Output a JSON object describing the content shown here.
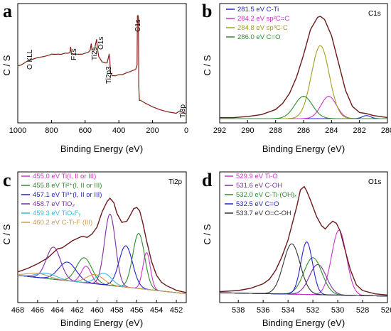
{
  "panels": [
    {
      "letter": "a",
      "xlabel": "Binding Energy (eV)",
      "ylabel": "C / S",
      "annotations": [
        "O KLL",
        "F1s",
        "Ti2s",
        "O1s",
        "Ti2p3",
        "C1s",
        "Ti3p"
      ]
    },
    {
      "letter": "b",
      "xlabel": "Binding Energy (eV)",
      "ylabel": "C / S",
      "corner_label": "C1s",
      "legend": [
        {
          "text": "281.5 eV C-Ti",
          "color": "#2222cc"
        },
        {
          "text": "284.2 eV sp²C=C",
          "color": "#cc33cc"
        },
        {
          "text": "284.8 eV sp³C-C",
          "color": "#a0a020"
        },
        {
          "text": "286.0 eV C=O",
          "color": "#2e8b2e"
        }
      ]
    },
    {
      "letter": "c",
      "xlabel": "Binding Energy (eV)",
      "ylabel": "C / S",
      "corner_label": "Ti2p",
      "legend": [
        {
          "text": "455.0 eV Ti(I, II or III)",
          "color": "#cc33cc"
        },
        {
          "text": "455.8 eV Ti²⁺(I, II or III)",
          "color": "#2e8b2e"
        },
        {
          "text": "457.1 eV Ti³⁺(I, II or III)",
          "color": "#2222cc"
        },
        {
          "text": "458.7 eV TiO₂",
          "color": "#7a2ea0"
        },
        {
          "text": "459.3 eV TiOₓFᵧ",
          "color": "#33bbdd"
        },
        {
          "text": "460.2 eV C-Ti-F (III)",
          "color": "#d09a50"
        }
      ]
    },
    {
      "letter": "d",
      "xlabel": "Binding Energy (eV)",
      "ylabel": "C / S",
      "corner_label": "O1s",
      "legend": [
        {
          "text": "529.9 eV Ti-O",
          "color": "#cc33cc"
        },
        {
          "text": "531.6 eV C-OH",
          "color": "#7a2ea0"
        },
        {
          "text": "532.0 eV C-Ti-(OH)ₓ",
          "color": "#2e8b2e"
        },
        {
          "text": "532.5 eV C=O",
          "color": "#2222cc"
        },
        {
          "text": "533.7 eV O=C-OH",
          "color": "#333333"
        }
      ]
    }
  ],
  "chart_data": [
    {
      "type": "line",
      "panel": "a",
      "xlabel": "Binding Energy (eV)",
      "ylabel": "C / S",
      "xlim": [
        1000,
        0
      ],
      "xticks": [
        "1000",
        "800",
        "600",
        "400",
        "200",
        "0"
      ],
      "series": [
        {
          "color": "#8b1a1a",
          "x": [
            1000,
            980,
            960,
            940,
            920,
            900,
            880,
            860,
            840,
            820,
            800,
            780,
            760,
            740,
            720,
            700,
            690,
            686,
            682,
            670,
            650,
            620,
            600,
            580,
            570,
            564,
            560,
            545,
            540,
            532,
            528,
            520,
            500,
            480,
            470,
            462,
            458,
            454,
            450,
            440,
            420,
            400,
            380,
            350,
            330,
            300,
            292,
            290,
            286,
            284,
            282,
            278,
            270,
            250,
            200,
            150,
            100,
            60,
            40,
            20,
            0
          ],
          "y": [
            0.49,
            0.5,
            0.52,
            0.54,
            0.55,
            0.56,
            0.57,
            0.575,
            0.58,
            0.59,
            0.6,
            0.6,
            0.6,
            0.6,
            0.61,
            0.61,
            0.62,
            0.67,
            0.61,
            0.6,
            0.6,
            0.6,
            0.61,
            0.62,
            0.64,
            0.7,
            0.64,
            0.64,
            0.68,
            0.74,
            0.66,
            0.58,
            0.53,
            0.52,
            0.52,
            0.57,
            0.6,
            0.56,
            0.43,
            0.4,
            0.4,
            0.41,
            0.41,
            0.43,
            0.44,
            0.46,
            0.5,
            0.96,
            0.96,
            0.94,
            0.3,
            0.17,
            0.17,
            0.15,
            0.11,
            0.08,
            0.06,
            0.05,
            0.07,
            0.06,
            0.04
          ]
        }
      ]
    },
    {
      "type": "line",
      "panel": "b",
      "xlabel": "Binding Energy (eV)",
      "ylabel": "C / S",
      "xlim": [
        292,
        280
      ],
      "xticks": [
        "292",
        "290",
        "288",
        "286",
        "284",
        "282",
        "280"
      ],
      "peaks": [
        {
          "label": "281.5 eV C-Ti",
          "center": 281.5,
          "height": 0.03,
          "fwhm": 0.7,
          "color": "#2222cc"
        },
        {
          "label": "284.2 eV sp²C=C",
          "center": 284.2,
          "height": 0.22,
          "fwhm": 1.3,
          "color": "#cc33cc"
        },
        {
          "label": "284.8 eV sp³C-C",
          "center": 284.8,
          "height": 0.72,
          "fwhm": 1.5,
          "color": "#a0a020"
        },
        {
          "label": "286.0 eV C=O",
          "center": 286.0,
          "height": 0.22,
          "fwhm": 1.5,
          "color": "#2e8b2e"
        }
      ],
      "baseline": {
        "y_at_xmin": 0.0,
        "y_at_xmax": 0.0
      },
      "envelope": {
        "x": [
          292,
          291,
          290,
          289,
          288,
          287.5,
          287,
          286.5,
          286,
          285.5,
          285,
          284.8,
          284.5,
          284,
          283.5,
          283,
          282.5,
          282,
          281.5,
          281,
          280.5,
          280
        ],
        "y": [
          0.01,
          0.01,
          0.02,
          0.04,
          0.09,
          0.15,
          0.25,
          0.41,
          0.63,
          0.88,
          1.0,
          1.01,
          0.98,
          0.82,
          0.55,
          0.28,
          0.12,
          0.06,
          0.05,
          0.03,
          0.02,
          0.01
        ]
      }
    },
    {
      "type": "line",
      "panel": "c",
      "xlabel": "Binding Energy (eV)",
      "ylabel": "C / S",
      "xlim": [
        468,
        451
      ],
      "xticks": [
        "468",
        "466",
        "464",
        "462",
        "460",
        "458",
        "456",
        "454",
        "452"
      ],
      "peaks": [
        {
          "label": "455.0 eV Ti(I, II or III)",
          "center": 455.0,
          "height": 0.32,
          "fwhm": 0.9,
          "color": "#cc33cc",
          "doublet_offset": 6.1,
          "doublet_ratio": 0.45
        },
        {
          "label": "455.8 eV Ti²⁺(I, II or III)",
          "center": 455.8,
          "height": 0.48,
          "fwhm": 1.4,
          "color": "#2e8b2e",
          "doublet_offset": 5.5,
          "doublet_ratio": 0.45
        },
        {
          "label": "457.1 eV Ti³⁺(I, II or III)",
          "center": 457.1,
          "height": 0.36,
          "fwhm": 1.6,
          "color": "#2222cc",
          "doublet_offset": 5.9,
          "doublet_ratio": 0.45
        },
        {
          "label": "458.7 eV TiO₂",
          "center": 458.7,
          "height": 0.62,
          "fwhm": 1.3,
          "color": "#7a2ea0",
          "doublet_offset": 5.7,
          "doublet_ratio": 0.45
        },
        {
          "label": "459.3 eV TiOₓFᵧ",
          "center": 459.3,
          "height": 0.1,
          "fwhm": 1.8,
          "color": "#33bbdd",
          "doublet_offset": 5.8,
          "doublet_ratio": 0.45
        },
        {
          "label": "460.2 eV C-Ti-F (III)",
          "center": 460.2,
          "height": 0.08,
          "fwhm": 2.0,
          "color": "#d09a50",
          "doublet_offset": 5.8,
          "doublet_ratio": 0.45
        }
      ],
      "baseline": {
        "y_at_xmin": 0.2,
        "y_at_xmax": 0.04
      },
      "envelope": {
        "x": [
          468,
          467,
          466,
          465,
          464.5,
          464,
          463.5,
          463,
          462.5,
          462,
          461.5,
          461,
          460.5,
          460,
          459.5,
          459,
          458.7,
          458.3,
          458,
          457.5,
          457,
          456.6,
          456.3,
          456,
          455.7,
          455.4,
          455,
          454.5,
          454,
          453.5,
          453,
          452.5,
          452,
          451.5,
          451
        ],
        "y": [
          0.23,
          0.26,
          0.3,
          0.35,
          0.39,
          0.43,
          0.44,
          0.47,
          0.5,
          0.52,
          0.54,
          0.53,
          0.56,
          0.62,
          0.75,
          0.84,
          0.87,
          0.83,
          0.74,
          0.66,
          0.67,
          0.73,
          0.78,
          0.79,
          0.76,
          0.66,
          0.5,
          0.32,
          0.2,
          0.14,
          0.11,
          0.09,
          0.07,
          0.06,
          0.05
        ]
      }
    },
    {
      "type": "line",
      "panel": "d",
      "xlabel": "Binding Energy (eV)",
      "ylabel": "C / S",
      "xlim": [
        539.5,
        526
      ],
      "xticks": [
        "538",
        "536",
        "534",
        "532",
        "530",
        "528",
        "526"
      ],
      "peaks": [
        {
          "label": "529.9 eV Ti-O",
          "center": 529.9,
          "height": 0.58,
          "fwhm": 1.4,
          "color": "#cc33cc"
        },
        {
          "label": "531.6 eV C-OH",
          "center": 531.6,
          "height": 0.27,
          "fwhm": 1.6,
          "color": "#7a2ea0"
        },
        {
          "label": "532.0 eV C-Ti-(OH)ₓ",
          "center": 532.0,
          "height": 0.33,
          "fwhm": 1.7,
          "color": "#2e8b2e"
        },
        {
          "label": "532.5 eV C=O",
          "center": 532.5,
          "height": 0.47,
          "fwhm": 1.1,
          "color": "#2222cc"
        },
        {
          "label": "533.7 eV O=C-OH",
          "center": 533.7,
          "height": 0.45,
          "fwhm": 1.6,
          "color": "#333333"
        }
      ],
      "baseline": {
        "y_at_xmin": 0.05,
        "y_at_xmax": 0.02
      },
      "envelope": {
        "x": [
          539.5,
          538,
          537,
          536,
          535.5,
          535,
          534.5,
          534,
          533.7,
          533.3,
          533,
          532.7,
          532.5,
          532.2,
          532,
          531.7,
          531.3,
          531,
          530.7,
          530.4,
          530.1,
          529.8,
          529.5,
          529,
          528.5,
          528,
          527,
          526
        ],
        "y": [
          0.06,
          0.07,
          0.09,
          0.13,
          0.17,
          0.25,
          0.37,
          0.52,
          0.65,
          0.82,
          0.97,
          1.0,
          0.96,
          0.88,
          0.82,
          0.73,
          0.65,
          0.62,
          0.66,
          0.69,
          0.67,
          0.6,
          0.47,
          0.26,
          0.12,
          0.07,
          0.04,
          0.03
        ]
      }
    }
  ]
}
